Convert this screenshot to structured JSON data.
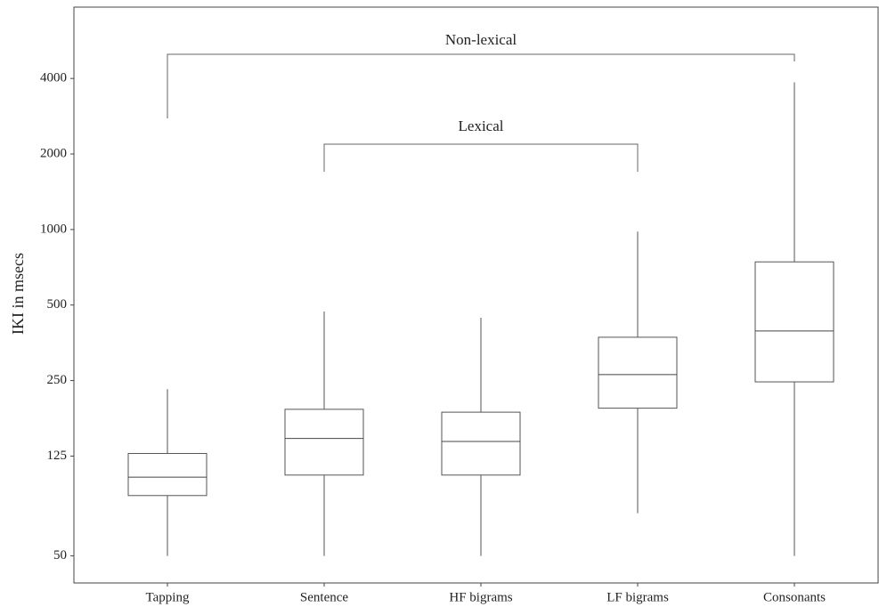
{
  "chart_data": {
    "type": "box",
    "ylabel": "IKI in msecs",
    "log_y": true,
    "categories": [
      "Tapping",
      "Sentence",
      "HF bigrams",
      "LF bigrams",
      "Consonants"
    ],
    "boxes": [
      {
        "min": 50,
        "q1": 87,
        "median": 103,
        "q3": 128,
        "max": 231
      },
      {
        "min": 50,
        "q1": 105,
        "median": 147,
        "q3": 192,
        "max": 471
      },
      {
        "min": 50,
        "q1": 105,
        "median": 143,
        "q3": 187,
        "max": 445
      },
      {
        "min": 74,
        "q1": 194,
        "median": 264,
        "q3": 372,
        "max": 981
      },
      {
        "min": 50,
        "q1": 247,
        "median": 394,
        "q3": 743,
        "max": 3860
      }
    ],
    "ylim": [
      39,
      7700
    ],
    "yticks": [
      50,
      125,
      250,
      500,
      1000,
      2000,
      4000
    ],
    "annotations": [
      "Non-lexical",
      "Lexical"
    ]
  }
}
